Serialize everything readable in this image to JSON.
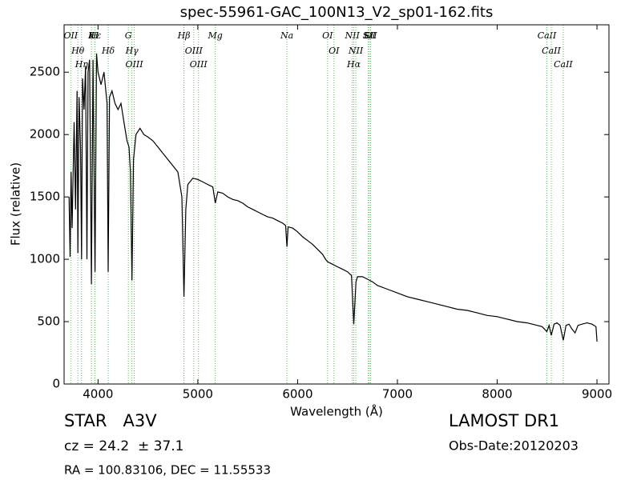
{
  "chart_data": {
    "type": "line",
    "title": "spec-55961-GAC_100N13_V2_sp01-162.fits",
    "x_label": "Wavelength (Å)",
    "y_label": "Flux (relative)",
    "color": "#000000",
    "line_color": "#5cb85c",
    "xlim": [
      3660,
      9120
    ],
    "ylim": [
      0,
      2880
    ],
    "xticks": [
      4000,
      5000,
      6000,
      7000,
      8000,
      9000
    ],
    "yticks": [
      0,
      500,
      1000,
      1500,
      2000,
      2500
    ],
    "x": [
      3710,
      3720,
      3730,
      3740,
      3760,
      3775,
      3790,
      3798,
      3810,
      3825,
      3835,
      3845,
      3860,
      3875,
      3889,
      3900,
      3915,
      3934,
      3950,
      3970,
      3985,
      4000,
      4030,
      4060,
      4090,
      4102,
      4115,
      4140,
      4170,
      4200,
      4230,
      4260,
      4290,
      4310,
      4325,
      4340,
      4355,
      4380,
      4420,
      4460,
      4500,
      4550,
      4600,
      4650,
      4700,
      4750,
      4800,
      4840,
      4861,
      4880,
      4900,
      4950,
      5000,
      5050,
      5100,
      5150,
      5175,
      5200,
      5250,
      5300,
      5350,
      5400,
      5450,
      5500,
      5550,
      5600,
      5650,
      5700,
      5750,
      5800,
      5850,
      5880,
      5893,
      5905,
      5950,
      6000,
      6050,
      6100,
      6150,
      6200,
      6250,
      6280,
      6300,
      6350,
      6400,
      6450,
      6500,
      6540,
      6563,
      6585,
      6600,
      6650,
      6700,
      6750,
      6800,
      6900,
      7000,
      7100,
      7200,
      7300,
      7400,
      7500,
      7600,
      7700,
      7800,
      7900,
      8000,
      8100,
      8200,
      8300,
      8400,
      8450,
      8498,
      8520,
      8542,
      8570,
      8600,
      8630,
      8662,
      8690,
      8720,
      8750,
      8780,
      8810,
      8850,
      8900,
      8950,
      8990,
      9000
    ],
    "values": [
      1500,
      1020,
      1700,
      1250,
      2100,
      1400,
      2350,
      1050,
      2300,
      1900,
      1000,
      2450,
      2200,
      2550,
      1000,
      2500,
      2600,
      800,
      2600,
      900,
      2650,
      2500,
      2400,
      2500,
      2250,
      900,
      2300,
      2350,
      2250,
      2200,
      2250,
      2100,
      1950,
      1900,
      1700,
      830,
      1800,
      2000,
      2050,
      2000,
      1980,
      1950,
      1900,
      1850,
      1800,
      1750,
      1700,
      1500,
      700,
      1400,
      1600,
      1650,
      1640,
      1620,
      1600,
      1580,
      1450,
      1540,
      1530,
      1500,
      1480,
      1470,
      1450,
      1420,
      1400,
      1380,
      1360,
      1340,
      1330,
      1310,
      1290,
      1270,
      1100,
      1260,
      1250,
      1220,
      1180,
      1150,
      1120,
      1080,
      1040,
      1000,
      980,
      960,
      940,
      920,
      900,
      870,
      480,
      820,
      860,
      860,
      840,
      820,
      790,
      760,
      730,
      700,
      680,
      660,
      640,
      620,
      600,
      590,
      570,
      550,
      540,
      520,
      500,
      490,
      470,
      460,
      420,
      470,
      390,
      480,
      490,
      470,
      350,
      470,
      480,
      440,
      410,
      470,
      480,
      490,
      480,
      460,
      340
    ],
    "lines": [
      {
        "label": "OII",
        "x": 3727
      },
      {
        "label": "Hθ",
        "x": 3798
      },
      {
        "label": "Hη",
        "x": 3835
      },
      {
        "label": "K",
        "x": 3934
      },
      {
        "label": "Hε",
        "x": 3970
      },
      {
        "label": "H",
        "x": 3968
      },
      {
        "label": "Hδ",
        "x": 4102
      },
      {
        "label": "G",
        "x": 4304
      },
      {
        "label": "Hγ",
        "x": 4340
      },
      {
        "label": "OIII",
        "x": 4363
      },
      {
        "label": "Hβ",
        "x": 4861
      },
      {
        "label": "OIII",
        "x": 4959
      },
      {
        "label": "OIII",
        "x": 5007
      },
      {
        "label": "Mg",
        "x": 5175
      },
      {
        "label": "Na",
        "x": 5893
      },
      {
        "label": "OI",
        "x": 6300
      },
      {
        "label": "OI",
        "x": 6364
      },
      {
        "label": "NII",
        "x": 6548
      },
      {
        "label": "Hα",
        "x": 6563
      },
      {
        "label": "NII",
        "x": 6583
      },
      {
        "label": "Li",
        "x": 6708
      },
      {
        "label": "SII",
        "x": 6717
      },
      {
        "label": "SII",
        "x": 6731
      },
      {
        "label": "CaII",
        "x": 8498
      },
      {
        "label": "CaII",
        "x": 8542
      },
      {
        "label": "CaII",
        "x": 8662
      }
    ]
  },
  "info": {
    "object": "STAR   A3V",
    "cz": "cz = 24.2  ± 37.1",
    "coords": "RA = 100.83106, DEC = 11.55533",
    "survey": "LAMOST DR1",
    "date": "Obs-Date:20120203"
  }
}
